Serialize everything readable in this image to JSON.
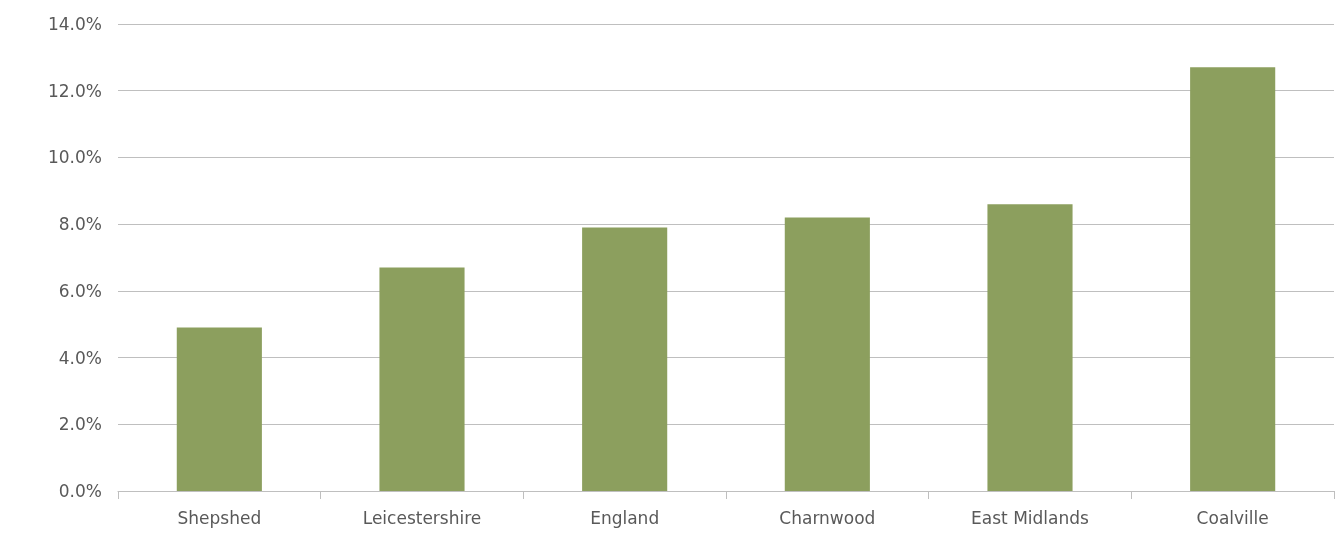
{
  "chart_data": {
    "type": "bar",
    "categories": [
      "Shepshed",
      "Leicestershire",
      "England",
      "Charnwood",
      "East Midlands",
      "Coalville"
    ],
    "values": [
      4.9,
      6.7,
      7.9,
      8.2,
      8.6,
      12.7
    ],
    "color": "#8c9f5e",
    "ylim": [
      0,
      14
    ],
    "yticks": [
      {
        "value": 0,
        "label": "0.0%"
      },
      {
        "value": 2,
        "label": "2.0%"
      },
      {
        "value": 4,
        "label": "4.0%"
      },
      {
        "value": 6,
        "label": "6.0%"
      },
      {
        "value": 8,
        "label": "8.0%"
      },
      {
        "value": 10,
        "label": "10.0%"
      },
      {
        "value": 12,
        "label": "12.0%"
      },
      {
        "value": 14,
        "label": "14.0%"
      }
    ],
    "grid": "y"
  }
}
